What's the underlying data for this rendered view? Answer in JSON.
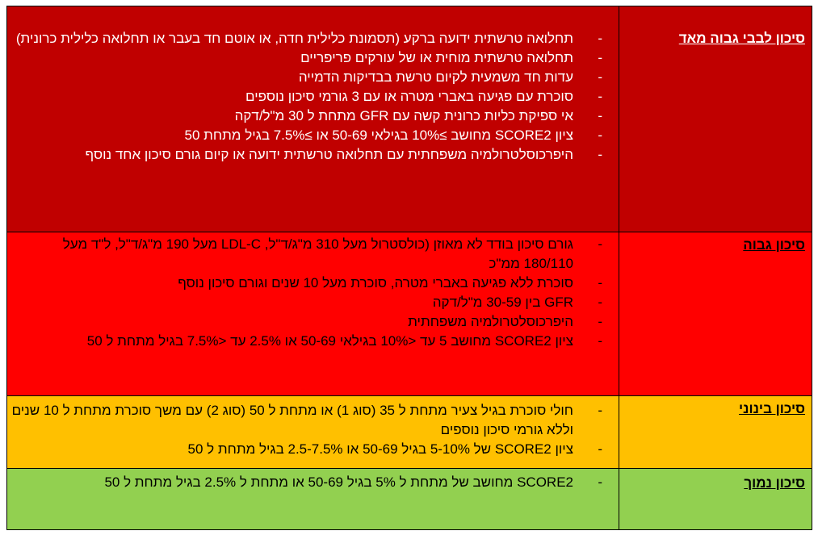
{
  "colors": {
    "very_high": "#C00000",
    "high": "#FF0000",
    "moderate": "#FFC000",
    "low": "#92D050"
  },
  "rows": [
    {
      "label": "סיכון לבבי גבוה מאד",
      "items": [
        "תחלואה טרשתית ידועה ברקע (תסמונת כלילית חדה, או אוטם חד בעבר או תחלואה כלילית כרונית)",
        "תחלואה טרשתית מוחית או של עורקים פריפריים",
        "עדות חד משמעית לקיום טרשת בבדיקות הדמייה",
        "סוכרת עם פגיעה באברי מטרה או עם 3 גורמי סיכון נוספים",
        "אי ספיקת כליות כרונית קשה עם  GFR מתחת ל 30 מ\"ל/דקה",
        "ציון SCORE2 מחושב ≥10% בגילאי 50-69 או ≥7.5% בגיל מתחת 50",
        "היפרכוסלטרולמיה משפחתית עם תחלואה טרשתית ידועה או קיום גורם סיכון אחד נוסף"
      ]
    },
    {
      "label": "סיכון גבוה",
      "items": [
        "גורם סיכון בודד לא מאוזן (כולסטרול מעל 310 מ\"ג/ד\"ל, LDL-C מעל 190 מ\"ג/ד\"ל, ל\"ד מעל 180/110 ממ\"כ",
        "סוכרת ללא פגיעה באברי מטרה, סוכרת מעל 10 שנים וגורם סיכון נוסף",
        "GFR בין 30-59 מ\"ל/דקה",
        "היפרכוסלטרולמיה משפחתית",
        "ציון SCORE2 מחושב 5 עד <10% בגילאי 50-69 או  2.5% עד <7.5% בגיל מתחת ל 50"
      ]
    },
    {
      "label": "סיכון בינוני",
      "items": [
        "חולי סוכרת בגיל צעיר מתחת ל 35 (סוג 1) או מתחת ל 50 (סוג 2) עם משך סוכרת מתחת ל 10 שנים וללא גורמי סיכון נוספים",
        "ציון SCORE2 של 5-10% בגיל 50-69 או 2.5-7.5% בגיל מתחת ל 50"
      ]
    },
    {
      "label": "סיכון נמוך",
      "items": [
        "SCORE2 מחושב של מתחת ל 5% בגיל 50-69 או מתחת ל 2.5% בגיל מתחת ל 50"
      ]
    }
  ]
}
